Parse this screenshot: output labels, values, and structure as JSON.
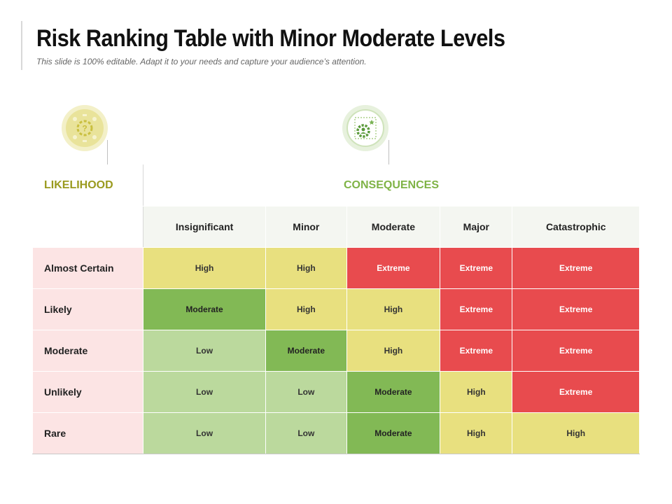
{
  "header": {
    "title": "Risk Ranking Table with Minor Moderate Levels",
    "subtitle": "This slide is 100% editable. Adapt it to your needs and capture your audience’s attention."
  },
  "icons": {
    "left": "question-gear-icon",
    "right": "user-gear-icon"
  },
  "table": {
    "likelihood_label": "LIKELIHOOD",
    "consequences_label": "CONSEQUENCES",
    "consequence_levels": [
      "Insignificant",
      "Minor",
      "Moderate",
      "Major",
      "Catastrophic"
    ],
    "rows": [
      {
        "likelihood": "Almost Certain",
        "cells": [
          "High",
          "High",
          "Extreme",
          "Extreme",
          "Extreme"
        ]
      },
      {
        "likelihood": "Likely",
        "cells": [
          "Moderate",
          "High",
          "High",
          "Extreme",
          "Extreme"
        ]
      },
      {
        "likelihood": "Moderate",
        "cells": [
          "Low",
          "Moderate",
          "High",
          "Extreme",
          "Extreme"
        ]
      },
      {
        "likelihood": "Unlikely",
        "cells": [
          "Low",
          "Low",
          "Moderate",
          "High",
          "Extreme"
        ]
      },
      {
        "likelihood": "Rare",
        "cells": [
          "Low",
          "Low",
          "Moderate",
          "High",
          "High"
        ]
      }
    ]
  },
  "colors": {
    "High": "#e8e07f",
    "Extreme": "#e84b4e",
    "Moderate": "#82b955",
    "Low": "#bbd99d",
    "likelihood_bg": "#fce4e4"
  }
}
